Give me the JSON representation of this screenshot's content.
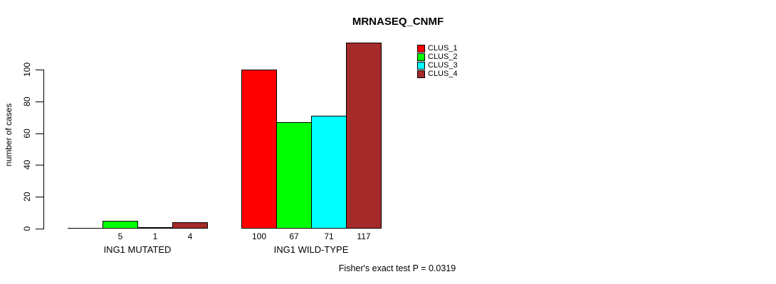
{
  "chart_data": {
    "type": "bar",
    "title": "MRNASEQ_CNMF",
    "ylabel": "number of cases",
    "xlabel": "",
    "ylim": [
      0,
      117
    ],
    "yticks": [
      0,
      20,
      40,
      60,
      80,
      100
    ],
    "grid": false,
    "legend_position": "top-right",
    "series": [
      {
        "name": "CLUS_1",
        "color": "#ff0000"
      },
      {
        "name": "CLUS_2",
        "color": "#00ff00"
      },
      {
        "name": "CLUS_3",
        "color": "#00ffff"
      },
      {
        "name": "CLUS_4",
        "color": "#a52a2a"
      }
    ],
    "groups": [
      {
        "label": "ING1 MUTATED",
        "values": [
          0,
          5,
          1,
          4
        ],
        "bar_labels": [
          "",
          "5",
          "1",
          "4"
        ]
      },
      {
        "label": "ING1 WILD-TYPE",
        "values": [
          100,
          67,
          71,
          117
        ],
        "bar_labels": [
          "100",
          "67",
          "71",
          "117"
        ]
      }
    ],
    "footer": "Fisher's exact test P = 0.0319"
  }
}
